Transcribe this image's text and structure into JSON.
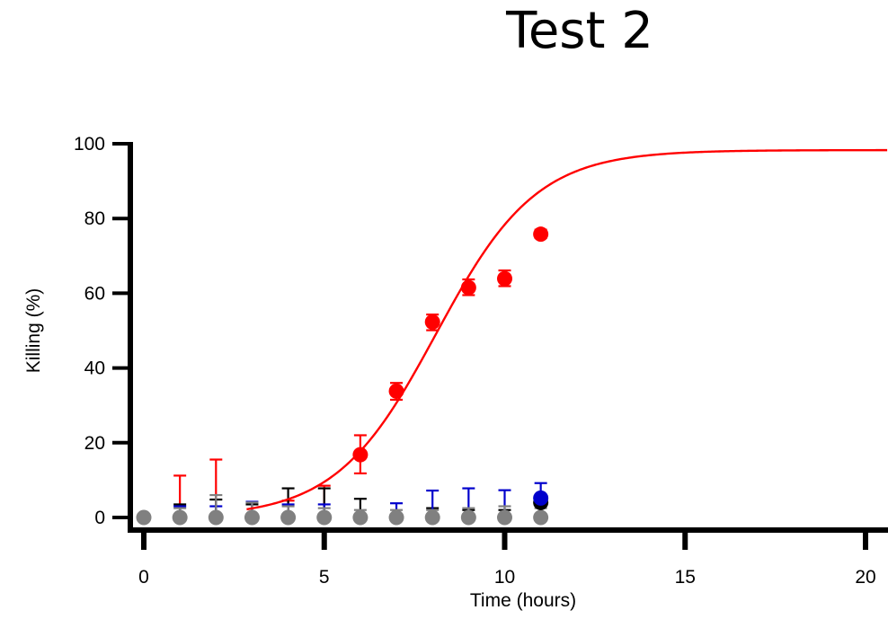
{
  "chart_data": {
    "type": "scatter",
    "title": "Test 2",
    "xlabel": "Time (hours)",
    "ylabel": "Killing (%)",
    "xlim": [
      -0.4,
      20.6
    ],
    "ylim": [
      -4,
      100
    ],
    "xticks": [
      0,
      5,
      10,
      15,
      20
    ],
    "yticks": [
      0,
      20,
      40,
      60,
      80,
      100
    ],
    "grid": false,
    "series": [
      {
        "color": "#808080",
        "x": [
          0,
          1,
          2,
          3,
          4,
          5,
          6,
          7,
          8,
          9,
          10,
          11
        ],
        "y": [
          0,
          0,
          0,
          0,
          0,
          0,
          0,
          0,
          0,
          0,
          0,
          0
        ],
        "err_plus": [
          0,
          2.5,
          6.0,
          4.0,
          3.0,
          2.5,
          2.0,
          2.0,
          2.0,
          2.5,
          3.0,
          2.5
        ]
      },
      {
        "color": "#000000",
        "x": [
          11
        ],
        "y": [
          4
        ],
        "err_plus": [
          1.5
        ]
      },
      {
        "color": "#0000cc",
        "x": [
          11
        ],
        "y": [
          5.2
        ],
        "err_plus": [
          4.0
        ]
      },
      {
        "color": "#ff0000",
        "x": [
          6,
          7,
          8,
          9,
          10,
          11
        ],
        "y": [
          16.8,
          33.8,
          52.3,
          61.5,
          63.9,
          75.8
        ],
        "err_plus": [
          5.2,
          2.2,
          2.0,
          2.2,
          2.2,
          1.2
        ],
        "err_minus": [
          5.0,
          2.3,
          2.2,
          2.0,
          2.0,
          1.0
        ]
      }
    ],
    "error_bars": [
      {
        "color": "#ff0000",
        "x": [
          1,
          2,
          4,
          5
        ],
        "top": [
          11.2,
          15.5,
          4.5,
          8.5
        ]
      },
      {
        "color": "#000000",
        "x": [
          1,
          2,
          3,
          4,
          5,
          6,
          8,
          9,
          10
        ],
        "top": [
          3.5,
          4.8,
          3.5,
          7.8,
          7.8,
          5.0,
          2.5,
          2.0,
          2.0
        ]
      },
      {
        "color": "#0000cc",
        "x": [
          1,
          2,
          3,
          4,
          5,
          7,
          8,
          9,
          10
        ],
        "top": [
          3.0,
          3.0,
          4.2,
          3.5,
          3.5,
          3.8,
          7.2,
          7.8,
          7.3
        ]
      }
    ],
    "fit_curve": {
      "color": "#ff0000",
      "model": "logistic",
      "top": 98.3,
      "midpoint": 8.1,
      "rate": 0.72,
      "x_start": 2.85,
      "x_end": 20.6
    }
  }
}
